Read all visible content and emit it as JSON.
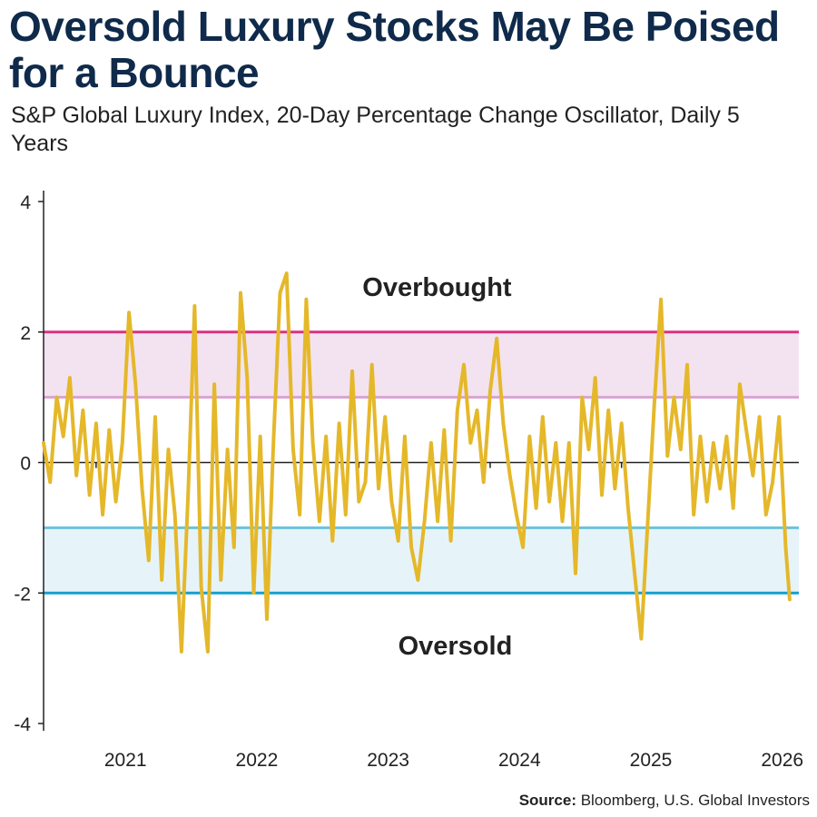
{
  "title": "Oversold Luxury Stocks May Be Poised for a Bounce",
  "subtitle": "S&P Global Luxury Index, 20-Day Percentage Change Oscillator, Daily 5 Years",
  "source_label": "Source:",
  "source_text": "Bloomberg, U.S. Global Investors",
  "colors": {
    "title": "#0f2a4a",
    "line": "#e5b82a",
    "overbought_band": "#f3e3f0",
    "overbought_upper": "#d63384",
    "overbought_lower": "#d9a3d2",
    "oversold_band": "#e6f4f9",
    "oversold_upper": "#6ac3df",
    "oversold_lower": "#159fce"
  },
  "chart_data": {
    "type": "line",
    "title": "S&P Global Luxury Index, 20-Day Percentage Change Oscillator, Daily 5 Years",
    "xlabel": "",
    "ylabel": "",
    "xlim": [
      2020.6,
      2026.35
    ],
    "ylim": [
      -4,
      4
    ],
    "y_ticks": [
      4,
      2,
      0,
      -2,
      -4
    ],
    "y_tick_labels": [
      "4",
      "2",
      "0",
      "-2",
      "-4"
    ],
    "x_ticks": [
      2021,
      2022,
      2023,
      2024,
      2025,
      2026
    ],
    "x_tick_labels": [
      "2021",
      "2022",
      "2023",
      "2024",
      "2025",
      "2026"
    ],
    "grid": false,
    "bands": [
      {
        "name": "Overbought",
        "from": 1,
        "to": 2
      },
      {
        "name": "Oversold",
        "from": -2,
        "to": -1
      }
    ],
    "annotations": [
      {
        "text": "Overbought",
        "x": 2023.25,
        "y": 2.75
      },
      {
        "text": "Oversold",
        "x": 2023.25,
        "y": -2.75
      }
    ],
    "series": [
      {
        "x": [
          2020.6,
          2020.65,
          2020.7,
          2020.75,
          2020.8,
          2020.85,
          2020.9,
          2020.95,
          2021.0,
          2021.05,
          2021.1,
          2021.15,
          2021.2,
          2021.25,
          2021.3,
          2021.35,
          2021.4,
          2021.45,
          2021.5,
          2021.55,
          2021.6,
          2021.65,
          2021.7,
          2021.75,
          2021.8,
          2021.85,
          2021.9,
          2021.95,
          2022.0,
          2022.05,
          2022.1,
          2022.15,
          2022.2,
          2022.25,
          2022.3,
          2022.35,
          2022.4,
          2022.45,
          2022.5,
          2022.55,
          2022.6,
          2022.65,
          2022.7,
          2022.75,
          2022.8,
          2022.85,
          2022.9,
          2022.95,
          2023.0,
          2023.05,
          2023.1,
          2023.15,
          2023.2,
          2023.25,
          2023.3,
          2023.35,
          2023.4,
          2023.45,
          2023.5,
          2023.55,
          2023.6,
          2023.65,
          2023.7,
          2023.75,
          2023.8,
          2023.85,
          2023.9,
          2023.95,
          2024.0,
          2024.05,
          2024.1,
          2024.15,
          2024.2,
          2024.25,
          2024.3,
          2024.35,
          2024.4,
          2024.45,
          2024.5,
          2024.55,
          2024.6,
          2024.65,
          2024.7,
          2024.75,
          2024.8,
          2024.85,
          2024.9,
          2024.95,
          2025.0,
          2025.05,
          2025.1,
          2025.15,
          2025.2,
          2025.25,
          2025.3,
          2025.35,
          2025.4,
          2025.45,
          2025.5,
          2025.55,
          2025.6,
          2025.65,
          2025.7,
          2025.75,
          2025.8,
          2025.85,
          2025.9,
          2025.95,
          2026.0,
          2026.05,
          2026.1,
          2026.15,
          2026.2,
          2026.25,
          2026.28
        ],
        "y": [
          0.3,
          -0.3,
          1.0,
          0.4,
          1.3,
          -0.2,
          0.8,
          -0.5,
          0.6,
          -0.8,
          0.5,
          -0.6,
          0.3,
          2.3,
          1.2,
          -0.4,
          -1.5,
          0.7,
          -1.8,
          0.2,
          -0.8,
          -2.9,
          -0.5,
          2.4,
          -1.9,
          -2.9,
          1.2,
          -1.8,
          0.2,
          -1.3,
          2.6,
          1.3,
          -2.0,
          0.4,
          -2.4,
          0.3,
          2.6,
          2.9,
          0.2,
          -0.8,
          2.5,
          0.3,
          -0.9,
          0.4,
          -1.2,
          0.6,
          -0.8,
          1.4,
          -0.6,
          -0.3,
          1.5,
          -0.4,
          0.7,
          -0.6,
          -1.2,
          0.4,
          -1.3,
          -1.8,
          -0.9,
          0.3,
          -0.9,
          0.5,
          -1.2,
          0.8,
          1.5,
          0.3,
          0.8,
          -0.3,
          1.1,
          1.9,
          0.6,
          -0.2,
          -0.8,
          -1.3,
          0.4,
          -0.7,
          0.7,
          -0.6,
          0.3,
          -0.9,
          0.3,
          -1.7,
          1.0,
          0.2,
          1.3,
          -0.5,
          0.8,
          -0.4,
          0.6,
          -0.7,
          -1.7,
          -2.7,
          -0.9,
          0.9,
          2.5,
          0.1,
          1.0,
          0.2,
          1.5,
          -0.8,
          0.4,
          -0.6,
          0.3,
          -0.4,
          0.4,
          -0.7,
          1.2,
          0.5,
          -0.2,
          0.7,
          -0.8,
          -0.3,
          0.7,
          -1.3,
          -2.1
        ]
      }
    ]
  }
}
